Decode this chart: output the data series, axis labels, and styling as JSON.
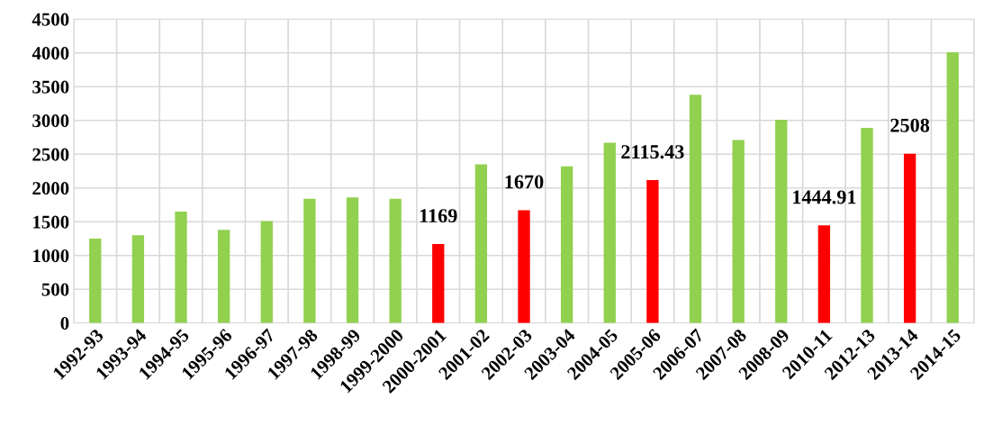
{
  "chart_data": {
    "type": "bar",
    "categories": [
      "1992-93",
      "1993-94",
      "1994-95",
      "1995-96",
      "1996-97",
      "1997-98",
      "1998-99",
      "1999-2000",
      "2000-2001",
      "2001-02",
      "2002-03",
      "2003-04",
      "2004-05",
      "2005-06",
      "2006-07",
      "2007-08",
      "2008-09",
      "2010-11",
      "2012-13",
      "2013-14",
      "2014-15"
    ],
    "values": [
      1250,
      1300,
      1650,
      1380,
      1510,
      1840,
      1860,
      1840,
      1169,
      2350,
      1670,
      2320,
      2670,
      2115.43,
      3380,
      2710,
      3010,
      1444.91,
      2890,
      2508,
      4010
    ],
    "colors": [
      "#92d050",
      "#92d050",
      "#92d050",
      "#92d050",
      "#92d050",
      "#92d050",
      "#92d050",
      "#92d050",
      "#ff0000",
      "#92d050",
      "#ff0000",
      "#92d050",
      "#92d050",
      "#ff0000",
      "#92d050",
      "#92d050",
      "#92d050",
      "#ff0000",
      "#92d050",
      "#ff0000",
      "#92d050"
    ],
    "value_labels": [
      null,
      null,
      null,
      null,
      null,
      null,
      null,
      null,
      "1169",
      null,
      "1670",
      null,
      null,
      "2115.43",
      null,
      null,
      null,
      "1444.91",
      null,
      "2508",
      null
    ],
    "ylim": [
      0,
      4500
    ],
    "yticks": [
      0,
      500,
      1000,
      1500,
      2000,
      2500,
      3000,
      3500,
      4000,
      4500
    ],
    "grid": true
  }
}
